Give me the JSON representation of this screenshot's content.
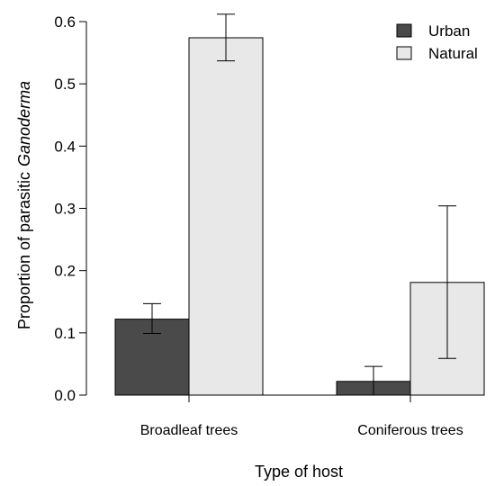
{
  "chart_data": {
    "type": "bar",
    "categories": [
      "Broadleaf trees",
      "Coniferous trees"
    ],
    "series": [
      {
        "name": "Urban",
        "color": "#4a4a4a",
        "values": [
          0.122,
          0.022
        ],
        "error_low": [
          0.099,
          0.0
        ],
        "error_high": [
          0.147,
          0.046
        ]
      },
      {
        "name": "Natural",
        "color": "#e8e8e8",
        "values": [
          0.574,
          0.181
        ],
        "error_low": [
          0.537,
          0.059
        ],
        "error_high": [
          0.612,
          0.304
        ]
      }
    ],
    "title": "",
    "xlabel": "Type of host",
    "ylabel_prefix": "Proportion of parasitic",
    "ylabel_italic": "Ganoderma",
    "ylim": [
      0,
      0.6
    ],
    "yticks": [
      0.0,
      0.1,
      0.2,
      0.3,
      0.4,
      0.5,
      0.6
    ],
    "ytick_labels": [
      "0.0",
      "0.1",
      "0.2",
      "0.3",
      "0.4",
      "0.5",
      "0.6"
    ],
    "grid": false,
    "legend_position": "top-right"
  }
}
